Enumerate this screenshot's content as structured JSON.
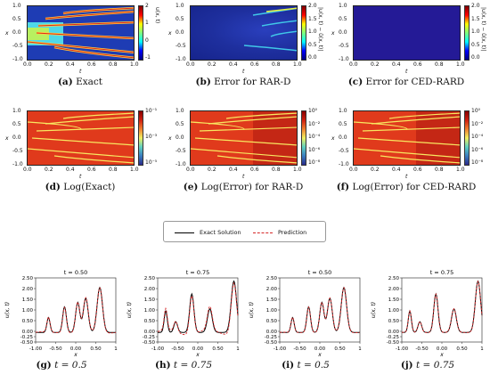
{
  "colors": {
    "exact": "#000000",
    "prediction": "#d62728"
  },
  "heatmaps": [
    {
      "id": "a",
      "style": "jet",
      "cbar": "jet",
      "cb_ticks": [
        "2",
        "1",
        "0",
        "-1"
      ],
      "cb_label": "u(x, t)",
      "caption_tag": "(a)",
      "caption_text": "Exact"
    },
    {
      "id": "b",
      "style": "rard",
      "cbar": "jet",
      "cb_ticks": [
        "2.0",
        "1.5",
        "1.0",
        "0.5",
        "0.0"
      ],
      "cb_label": "|u(x, t) − û(x, t)|",
      "caption_tag": "(b)",
      "caption_text": "Error for RAR-D"
    },
    {
      "id": "c",
      "style": "ced",
      "cbar": "jet",
      "cb_ticks": [
        "2.0",
        "1.5",
        "1.0",
        "0.5",
        "0.0"
      ],
      "cb_label": "|u(x, t) − û(x, t)|",
      "caption_tag": "(c)",
      "caption_text": "Error for CED-RARD"
    },
    {
      "id": "d",
      "style": "log",
      "cbar": "log",
      "cb_ticks": [
        "10⁻¹",
        "10⁻³",
        "10⁻⁵"
      ],
      "cb_label": "",
      "caption_tag": "(d)",
      "caption_text": "Log(Exact)"
    },
    {
      "id": "e",
      "style": "log",
      "cbar": "log",
      "cb_ticks": [
        "10⁰",
        "10⁻²",
        "10⁻⁴",
        "10⁻⁶",
        "10⁻⁸"
      ],
      "cb_label": "",
      "caption_tag": "(e)",
      "caption_text": "Log(Error) for RAR-D"
    },
    {
      "id": "f",
      "style": "log",
      "cbar": "log",
      "cb_ticks": [
        "10⁰",
        "10⁻²",
        "10⁻⁴",
        "10⁻⁶",
        "10⁻⁸"
      ],
      "cb_label": "",
      "caption_tag": "(f)",
      "caption_text": "Log(Error) for CED-RARD"
    }
  ],
  "heat_axes": {
    "x_ticks": [
      "0.0",
      "0.2",
      "0.4",
      "0.6",
      "0.8",
      "1.0"
    ],
    "y_ticks": [
      "1.0",
      "0.5",
      "0.0",
      "-0.5",
      "-1.0"
    ],
    "xlabel": "t",
    "ylabel": "x"
  },
  "legend": {
    "exact_label": "Exact Solution",
    "prediction_label": "Prediction"
  },
  "chart_data": [
    {
      "type": "line",
      "title": "t = 0.50",
      "xlabel": "x",
      "ylabel": "u(x, t)",
      "xlim": [
        -1,
        1
      ],
      "ylim": [
        -0.5,
        2.5
      ],
      "x_ticks": [
        "-1.00",
        "-0.50",
        "0.00",
        "0.50",
        "1"
      ],
      "y_ticks": [
        "2.50",
        "2.00",
        "1.50",
        "1.00",
        "0.50",
        "0.00",
        "-0.25",
        "-0.50"
      ],
      "peaks": [
        [
          -0.68,
          0.7
        ],
        [
          -0.28,
          1.2
        ],
        [
          0.05,
          1.4
        ],
        [
          0.25,
          1.6
        ],
        [
          0.6,
          2.1
        ]
      ],
      "series": [
        {
          "name": "Exact Solution",
          "offset": 0
        },
        {
          "name": "Prediction",
          "offset": 0.03
        }
      ],
      "caption_tag": "(g)",
      "caption_text": "t = 0.5"
    },
    {
      "type": "line",
      "title": "t = 0.75",
      "xlabel": "x",
      "ylabel": "u(x, t)",
      "xlim": [
        -1,
        1
      ],
      "ylim": [
        -0.5,
        2.5
      ],
      "x_ticks": [
        "-1.00",
        "-0.50",
        "0.00",
        "0.50",
        "1"
      ],
      "y_ticks": [
        "2.50",
        "2.00",
        "1.50",
        "1.00",
        "0.50",
        "0.00",
        "-0.25",
        "-0.50"
      ],
      "peaks": [
        [
          -0.8,
          1.0
        ],
        [
          -0.55,
          0.5
        ],
        [
          -0.15,
          1.8
        ],
        [
          0.3,
          1.1
        ],
        [
          0.9,
          2.4
        ]
      ],
      "series": [
        {
          "name": "Exact Solution",
          "offset": 0
        },
        {
          "name": "Prediction",
          "offset": 0.12
        }
      ],
      "caption_tag": "(h)",
      "caption_text": "t = 0.75"
    },
    {
      "type": "line",
      "title": "t = 0.50",
      "xlabel": "x",
      "ylabel": "u(x, t)",
      "xlim": [
        -1,
        1
      ],
      "ylim": [
        -0.5,
        2.5
      ],
      "x_ticks": [
        "-1.00",
        "-0.50",
        "0.00",
        "0.50",
        "1"
      ],
      "y_ticks": [
        "2.50",
        "2.00",
        "1.50",
        "1.00",
        "0.50",
        "0.00",
        "-0.25",
        "-0.50"
      ],
      "peaks": [
        [
          -0.68,
          0.7
        ],
        [
          -0.28,
          1.2
        ],
        [
          0.05,
          1.4
        ],
        [
          0.25,
          1.6
        ],
        [
          0.6,
          2.1
        ]
      ],
      "series": [
        {
          "name": "Exact Solution",
          "offset": 0
        },
        {
          "name": "Prediction",
          "offset": 0.01
        }
      ],
      "caption_tag": "(i)",
      "caption_text": "t = 0.5"
    },
    {
      "type": "line",
      "title": "t = 0.75",
      "xlabel": "x",
      "ylabel": "u(x, t)",
      "xlim": [
        -1,
        1
      ],
      "ylim": [
        -0.5,
        2.5
      ],
      "x_ticks": [
        "-1.00",
        "-0.50",
        "0.00",
        "0.50",
        "1"
      ],
      "y_ticks": [
        "2.50",
        "2.00",
        "1.50",
        "1.00",
        "0.50",
        "0.00",
        "-0.25",
        "-0.50"
      ],
      "peaks": [
        [
          -0.8,
          1.0
        ],
        [
          -0.55,
          0.5
        ],
        [
          -0.15,
          1.8
        ],
        [
          0.3,
          1.1
        ],
        [
          0.9,
          2.4
        ]
      ],
      "series": [
        {
          "name": "Exact Solution",
          "offset": 0
        },
        {
          "name": "Prediction",
          "offset": 0.01
        }
      ],
      "caption_tag": "(j)",
      "caption_text": "t = 0.75"
    }
  ]
}
